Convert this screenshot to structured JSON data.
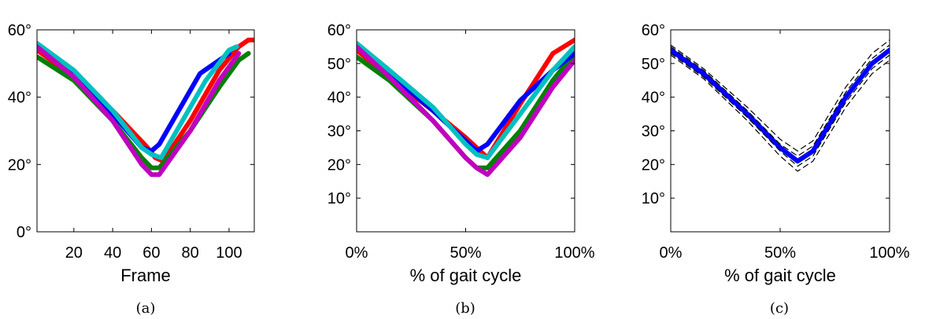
{
  "chart_data": [
    {
      "type": "line",
      "caption": "(a)",
      "xlabel": "Frame",
      "xlim": [
        1,
        113
      ],
      "ylim": [
        0,
        60
      ],
      "xticks": [
        20,
        40,
        60,
        80,
        100
      ],
      "xtick_labels": [
        "20",
        "40",
        "60",
        "80",
        "100"
      ],
      "yticks": [
        0,
        20,
        40,
        60
      ],
      "ytick_labels": [
        "0°",
        "20°",
        "40°",
        "60°"
      ],
      "series": [
        {
          "color": "#ff0000",
          "x": [
            1,
            20,
            40,
            58,
            62,
            66,
            80,
            95,
            105,
            110,
            113
          ],
          "y": [
            54,
            46,
            36,
            25,
            22,
            21,
            33,
            48,
            55,
            57,
            57
          ]
        },
        {
          "color": "#008000",
          "x": [
            1,
            20,
            40,
            55,
            60,
            64,
            80,
            95,
            105,
            110
          ],
          "y": [
            52,
            45,
            33,
            22,
            19,
            19,
            30,
            43,
            51,
            53
          ]
        },
        {
          "color": "#0000ff",
          "x": [
            1,
            20,
            40,
            55,
            60,
            64,
            75,
            85,
            95,
            100
          ],
          "y": [
            55,
            47,
            35,
            25,
            24,
            26,
            37,
            47,
            51,
            53
          ]
        },
        {
          "color": "#00c0c0",
          "x": [
            1,
            20,
            40,
            55,
            60,
            65,
            75,
            88,
            100,
            104
          ],
          "y": [
            56,
            48,
            36,
            25,
            23,
            22,
            32,
            45,
            54,
            55
          ]
        },
        {
          "color": "#c000c0",
          "x": [
            1,
            20,
            40,
            55,
            60,
            64,
            80,
            95,
            105
          ],
          "y": [
            55,
            46,
            33,
            20,
            17,
            17,
            30,
            45,
            53
          ]
        }
      ]
    },
    {
      "type": "line",
      "caption": "(b)",
      "xlabel": "% of gait cycle",
      "xlim": [
        0,
        100
      ],
      "ylim": [
        0,
        60
      ],
      "xticks": [
        0,
        50,
        100
      ],
      "xtick_labels": [
        "0%",
        "50%",
        "100%"
      ],
      "yticks": [
        10,
        20,
        30,
        40,
        50,
        60
      ],
      "ytick_labels": [
        "10°",
        "20°",
        "30°",
        "40°",
        "50°",
        "60°"
      ],
      "series": [
        {
          "color": "#ff0000",
          "x": [
            0,
            15,
            35,
            50,
            55,
            60,
            75,
            90,
            100
          ],
          "y": [
            54,
            46,
            36,
            28,
            25,
            22,
            38,
            53,
            57
          ]
        },
        {
          "color": "#008000",
          "x": [
            0,
            15,
            35,
            50,
            55,
            60,
            75,
            90,
            100
          ],
          "y": [
            52,
            45,
            33,
            22,
            19,
            19,
            30,
            45,
            53
          ]
        },
        {
          "color": "#0000ff",
          "x": [
            0,
            15,
            35,
            50,
            55,
            60,
            75,
            90,
            100
          ],
          "y": [
            55,
            47,
            36,
            27,
            24,
            26,
            39,
            48,
            53
          ]
        },
        {
          "color": "#00c0c0",
          "x": [
            0,
            15,
            35,
            50,
            55,
            60,
            75,
            90,
            100
          ],
          "y": [
            56,
            48,
            37,
            26,
            23,
            22,
            35,
            48,
            55
          ]
        },
        {
          "color": "#c000c0",
          "x": [
            0,
            15,
            35,
            50,
            55,
            60,
            75,
            90,
            100
          ],
          "y": [
            55,
            46,
            33,
            22,
            19,
            17,
            28,
            43,
            51
          ]
        }
      ]
    },
    {
      "type": "line",
      "caption": "(c)",
      "xlabel": "% of gait cycle",
      "xlim": [
        0,
        100
      ],
      "ylim": [
        0,
        60
      ],
      "xticks": [
        0,
        50,
        100
      ],
      "xtick_labels": [
        "0%",
        "50%",
        "100%"
      ],
      "yticks": [
        10,
        20,
        30,
        40,
        50,
        60
      ],
      "ytick_labels": [
        "10°",
        "20°",
        "30°",
        "40°",
        "50°",
        "60°"
      ],
      "series": [
        {
          "role": "mean",
          "color": "#0000ff",
          "x": [
            0,
            15,
            35,
            50,
            58,
            65,
            80,
            92,
            100
          ],
          "y": [
            54,
            47,
            35,
            25,
            21,
            24,
            40,
            50,
            54
          ]
        },
        {
          "role": "bound",
          "color": "#000000",
          "x": [
            0,
            15,
            35,
            50,
            58,
            65,
            80,
            92,
            100
          ],
          "y": [
            55.5,
            48.5,
            37,
            27.5,
            24,
            27,
            43,
            53,
            57
          ]
        },
        {
          "role": "bound",
          "color": "#000000",
          "x": [
            0,
            15,
            35,
            50,
            58,
            65,
            80,
            92,
            100
          ],
          "y": [
            52.5,
            45.5,
            33,
            22.5,
            18,
            21,
            37,
            47,
            51
          ]
        },
        {
          "role": "bound",
          "color": "#000000",
          "x": [
            0,
            15,
            35,
            50,
            58,
            65,
            80,
            92,
            100
          ],
          "y": [
            55,
            48,
            36,
            26,
            22.5,
            25.5,
            41.5,
            51.5,
            55.5
          ]
        },
        {
          "role": "bound",
          "color": "#000000",
          "x": [
            0,
            15,
            35,
            50,
            58,
            65,
            80,
            92,
            100
          ],
          "y": [
            53,
            46,
            34,
            24,
            19.5,
            22.5,
            38.5,
            48.5,
            52.5
          ]
        }
      ]
    }
  ]
}
